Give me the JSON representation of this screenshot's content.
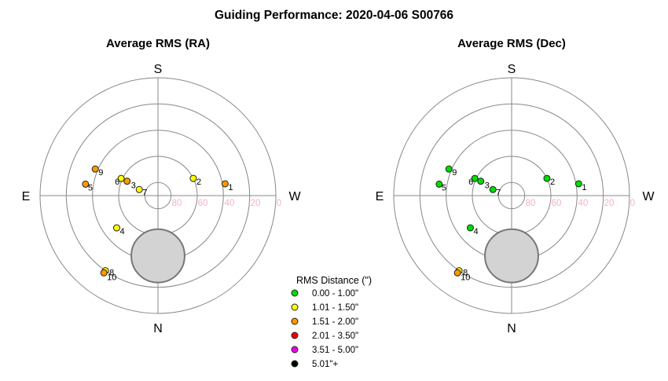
{
  "title": "Guiding Performance: 2020-04-06 S00766",
  "compass": {
    "top": "S",
    "bottom": "N",
    "left": "E",
    "right": "W"
  },
  "ring_labels": [
    "80",
    "60",
    "40",
    "20",
    "0"
  ],
  "legend": {
    "title": "RMS Distance (\")",
    "items": [
      {
        "label": "0.00 - 1.00\"",
        "color": "#00dd00"
      },
      {
        "label": "1.01 - 1.50\"",
        "color": "#ffff00"
      },
      {
        "label": "1.51 - 2.00\"",
        "color": "#ff9900"
      },
      {
        "label": "2.01 - 3.50\"",
        "color": "#ee0000"
      },
      {
        "label": "3.51 - 5.00\"",
        "color": "#ee00ee"
      },
      {
        "label": "5.01\"+",
        "color": "#000000"
      }
    ]
  },
  "chart_data": [
    {
      "type": "scatter",
      "title": "Average RMS (RA)",
      "coordinate_system": "polar",
      "radial_axis": "altitude (deg)",
      "ring_values": [
        80,
        60,
        40,
        20,
        0
      ],
      "points": [
        {
          "id": "1",
          "azimuth": 280,
          "altitude": 38,
          "color": "#ff9900"
        },
        {
          "id": "2",
          "azimuth": 296,
          "altitude": 60,
          "color": "#ffff00"
        },
        {
          "id": "3",
          "azimuth": 65,
          "altitude": 64,
          "color": "#ff9900"
        },
        {
          "id": "4",
          "azimuth": 128,
          "altitude": 50,
          "color": "#ffff00"
        },
        {
          "id": "5",
          "azimuth": 81,
          "altitude": 34,
          "color": "#ff9900"
        },
        {
          "id": "6",
          "azimuth": 65,
          "altitude": 59,
          "color": "#ffff00"
        },
        {
          "id": "7",
          "azimuth": 72,
          "altitude": 75,
          "color": "#ffff00"
        },
        {
          "id": "8",
          "azimuth": 145,
          "altitude": 20,
          "color": "#ffff00"
        },
        {
          "id": "9",
          "azimuth": 67,
          "altitude": 38,
          "color": "#ff9900"
        },
        {
          "id": "10",
          "azimuth": 145,
          "altitude": 18,
          "color": "#ff9900"
        }
      ],
      "horizon_obstruction": {
        "azimuth": 180,
        "altitude_center": 44,
        "radius_deg": 21
      }
    },
    {
      "type": "scatter",
      "title": "Average RMS (Dec)",
      "coordinate_system": "polar",
      "radial_axis": "altitude (deg)",
      "ring_values": [
        80,
        60,
        40,
        20,
        0
      ],
      "points": [
        {
          "id": "1",
          "azimuth": 280,
          "altitude": 38,
          "color": "#00dd00"
        },
        {
          "id": "2",
          "azimuth": 296,
          "altitude": 60,
          "color": "#00dd00"
        },
        {
          "id": "3",
          "azimuth": 65,
          "altitude": 64,
          "color": "#00dd00"
        },
        {
          "id": "4",
          "azimuth": 128,
          "altitude": 50,
          "color": "#00dd00"
        },
        {
          "id": "5",
          "azimuth": 81,
          "altitude": 34,
          "color": "#00dd00"
        },
        {
          "id": "6",
          "azimuth": 65,
          "altitude": 59,
          "color": "#00dd00"
        },
        {
          "id": "7",
          "azimuth": 72,
          "altitude": 75,
          "color": "#00dd00"
        },
        {
          "id": "8",
          "azimuth": 145,
          "altitude": 20,
          "color": "#ffff00"
        },
        {
          "id": "9",
          "azimuth": 67,
          "altitude": 38,
          "color": "#00dd00"
        },
        {
          "id": "10",
          "azimuth": 145,
          "altitude": 18,
          "color": "#ff9900"
        }
      ],
      "horizon_obstruction": {
        "azimuth": 180,
        "altitude_center": 44,
        "radius_deg": 21
      }
    }
  ]
}
